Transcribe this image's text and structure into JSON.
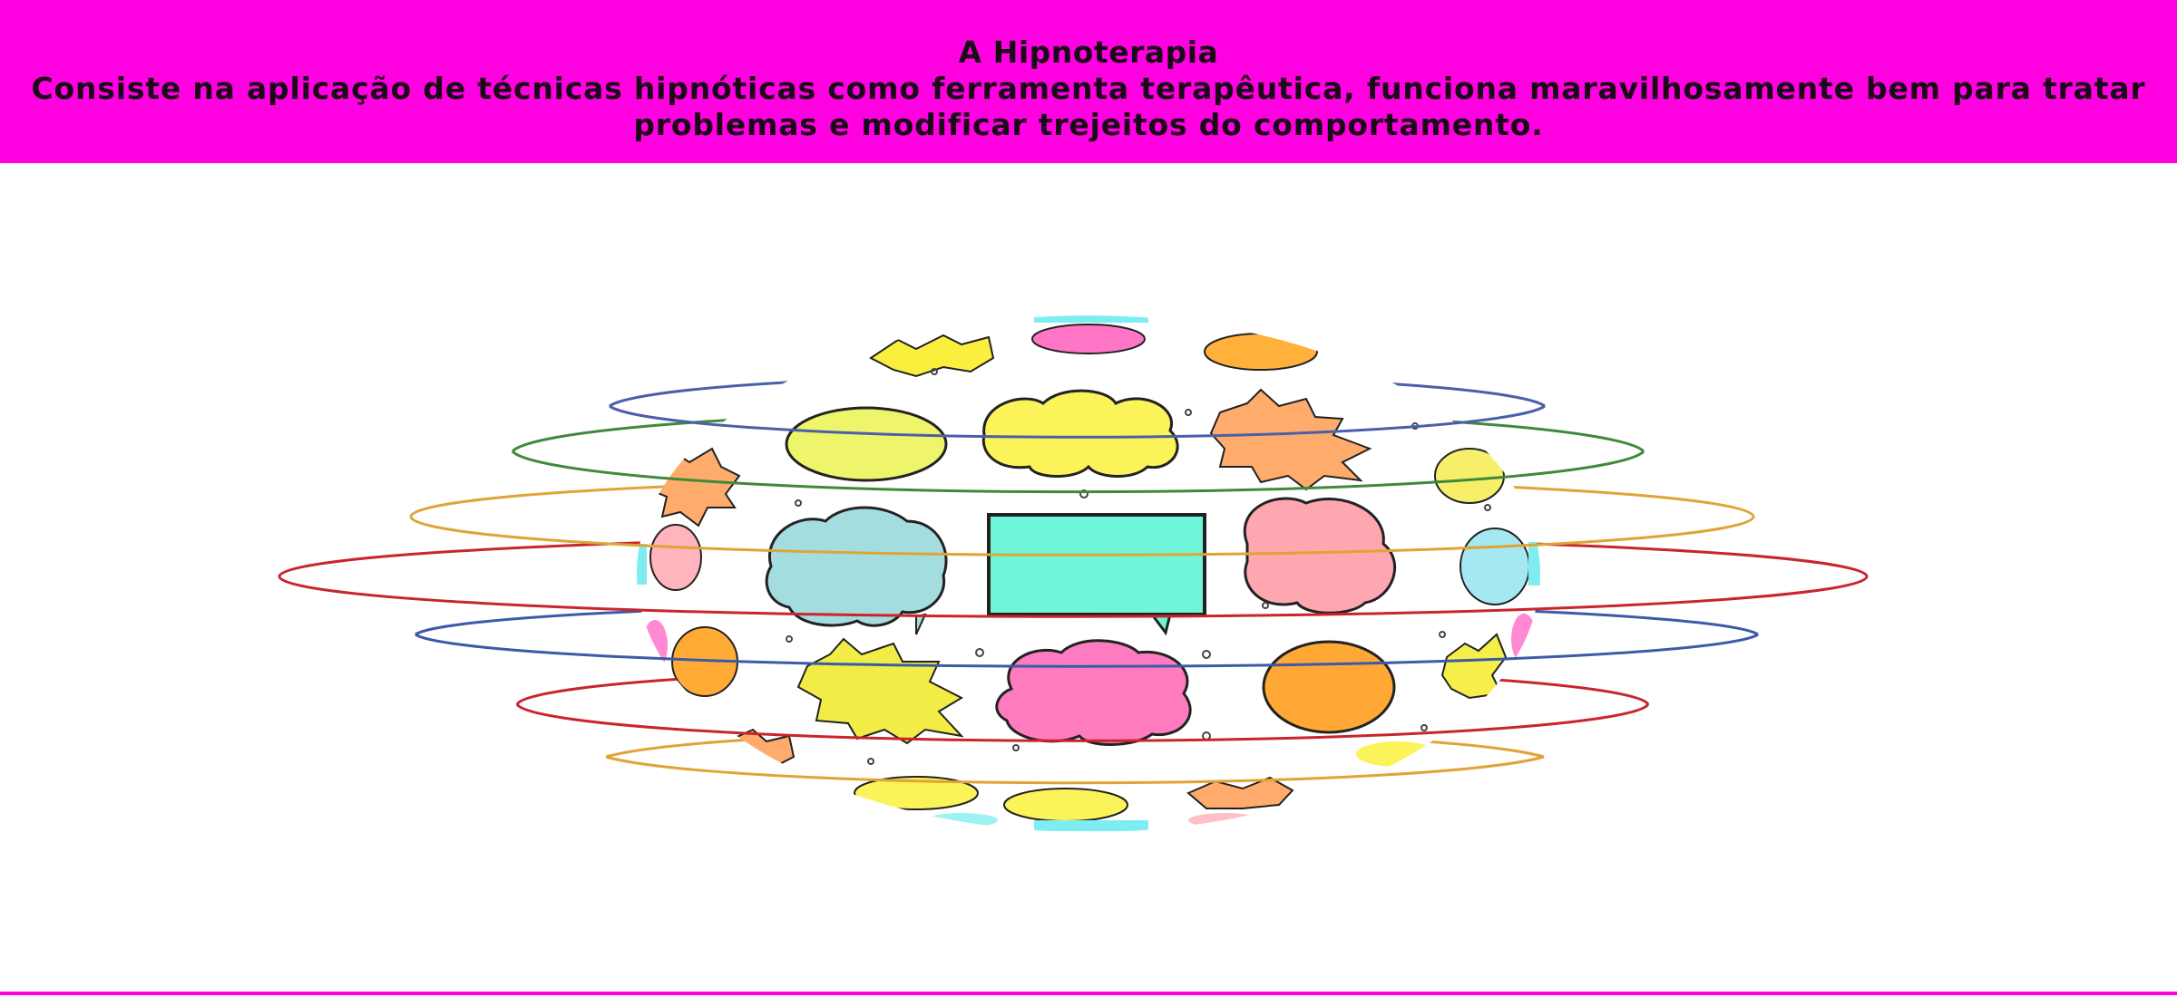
{
  "header": {
    "title": "A Hipnoterapia",
    "description": "Consiste na aplicação de técnicas hipnóticas como ferramenta terapêutica, funciona maravilhosamente bem para tratar problemas e modificar trejeitos do comportamento."
  },
  "colors": {
    "banner_background": "#ff00e1",
    "page_background": "#ffffff",
    "text": "#1a0a18"
  },
  "illustration": {
    "subject": "globe-of-speech-bubbles-with-orbit-rings"
  }
}
